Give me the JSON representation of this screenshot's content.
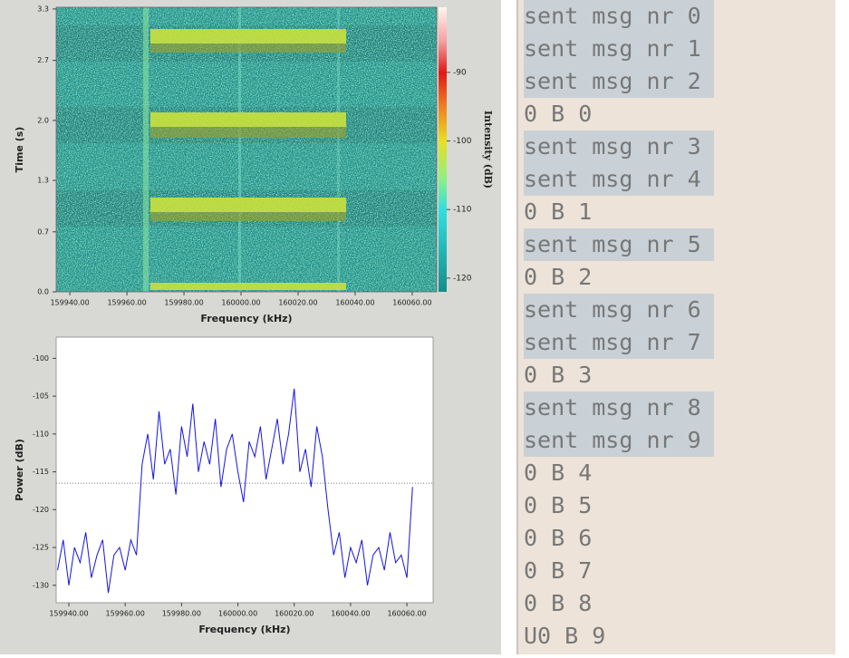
{
  "chart_data": [
    {
      "type": "heatmap",
      "xlabel": "Frequency (kHz)",
      "ylabel": "Time (s)",
      "colorbar_label": "Intensity (dB)",
      "xlim": [
        159935.2,
        160068.6
      ],
      "ylim": [
        0,
        3.32
      ],
      "xticks": [
        {
          "value": 159940,
          "label": "159940.00"
        },
        {
          "value": 159960,
          "label": "159960.00"
        },
        {
          "value": 159980,
          "label": "159980.00"
        },
        {
          "value": 160000,
          "label": "160000.00"
        },
        {
          "value": 160020,
          "label": "160020.00"
        },
        {
          "value": 160040,
          "label": "160040.00"
        },
        {
          "value": 160060,
          "label": "160060.00"
        }
      ],
      "yticks": [
        {
          "value": 0,
          "label": "0.0"
        },
        0.7,
        1.3,
        {
          "value": 2,
          "label": "2.0"
        },
        2.7,
        3.3
      ],
      "clim": [
        -122,
        -80.5
      ],
      "cticks": [
        -90,
        -100,
        -110,
        -120
      ]
    },
    {
      "type": "line",
      "xlabel": "Frequency (kHz)",
      "ylabel": "Power (dB)",
      "color": "#1414e0",
      "threshold": -116.5,
      "xlim": [
        159935.5,
        160069.3
      ],
      "ylim": [
        -132.3,
        -97.2
      ],
      "xticks": [
        {
          "value": 159940,
          "label": "159940.00"
        },
        {
          "value": 159960,
          "label": "159960.00"
        },
        {
          "value": 159980,
          "label": "159980.00"
        },
        {
          "value": 160000,
          "label": "160000.00"
        },
        {
          "value": 160020,
          "label": "160020.00"
        },
        {
          "value": 160040,
          "label": "160040.00"
        },
        {
          "value": 160060,
          "label": "160060.00"
        }
      ],
      "yticks": [
        -100,
        -105,
        -110,
        -115,
        -120,
        -125,
        -130
      ],
      "x": [
        159936,
        159938,
        159940,
        159942,
        159944,
        159946,
        159948,
        159950,
        159952,
        159954,
        159956,
        159958,
        159960,
        159962,
        159964,
        159966,
        159968,
        159970,
        159972,
        159974,
        159976,
        159978,
        159980,
        159982,
        159984,
        159986,
        159988,
        159990,
        159992,
        159994,
        159996,
        159998,
        160000,
        160002,
        160004,
        160006,
        160008,
        160010,
        160012,
        160014,
        160016,
        160018,
        160020,
        160022,
        160024,
        160026,
        160028,
        160030,
        160032,
        160034,
        160036,
        160038,
        160040,
        160042,
        160044,
        160046,
        160048,
        160050,
        160052,
        160054,
        160056,
        160058,
        160060,
        160062
      ],
      "values": [
        -128,
        -124,
        -130,
        -125,
        -127,
        -123,
        -129,
        -126,
        -124,
        -131,
        -126,
        -125,
        -128,
        -124,
        -126,
        -114,
        -110,
        -116,
        -107,
        -114,
        -112,
        -118,
        -109,
        -113,
        -106,
        -115,
        -111,
        -114,
        -108,
        -117,
        -112,
        -110,
        -115,
        -119,
        -111,
        -113,
        -109,
        -116,
        -112,
        -108,
        -114,
        -110,
        -104,
        -115,
        -112,
        -117,
        -109,
        -113,
        -120,
        -126,
        -123,
        -129,
        -125,
        -127,
        -124,
        -130,
        -126,
        -125,
        -128,
        -123,
        -127,
        -126,
        -129,
        -117
      ]
    }
  ],
  "terminal": {
    "lines": [
      {
        "text": "sent msg nr 0",
        "highlight": true
      },
      {
        "text": "sent msg nr 1",
        "highlight": true
      },
      {
        "text": "sent msg nr 2",
        "highlight": true
      },
      {
        "text": "0 B 0",
        "highlight": false
      },
      {
        "text": "sent msg nr 3",
        "highlight": true
      },
      {
        "text": "sent msg nr 4",
        "highlight": true
      },
      {
        "text": "0 B 1",
        "highlight": false
      },
      {
        "text": "sent msg nr 5",
        "highlight": true
      },
      {
        "text": "0 B 2",
        "highlight": false
      },
      {
        "text": "sent msg nr 6",
        "highlight": true
      },
      {
        "text": "sent msg nr 7",
        "highlight": true
      },
      {
        "text": "0 B 3",
        "highlight": false
      },
      {
        "text": "sent msg nr 8",
        "highlight": true
      },
      {
        "text": "sent msg nr 9",
        "highlight": true
      },
      {
        "text": "0 B 4",
        "highlight": false
      },
      {
        "text": "0 B 5",
        "highlight": false
      },
      {
        "text": "0 B 6",
        "highlight": false
      },
      {
        "text": "0 B 7",
        "highlight": false
      },
      {
        "text": "0 B 8",
        "highlight": false
      },
      {
        "text": "U0 B 9",
        "highlight": false
      }
    ]
  }
}
